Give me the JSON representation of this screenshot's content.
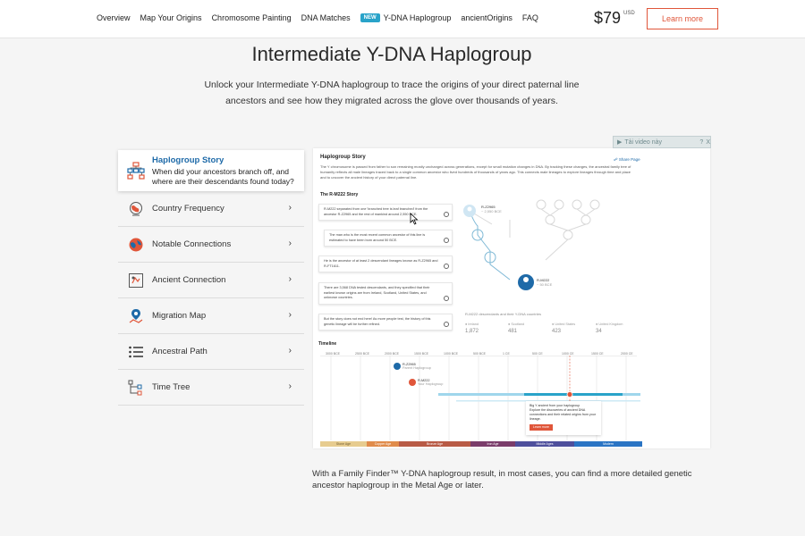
{
  "nav": {
    "links": [
      "Overview",
      "Map Your Origins",
      "Chromosome Painting",
      "DNA Matches"
    ],
    "new_badge": "NEW",
    "ydna_link": "Y-DNA Haplogroup",
    "more_links": [
      "ancientOrigins",
      "FAQ"
    ],
    "price": "$79",
    "currency": "USD",
    "learn_more": "Learn more"
  },
  "hero": {
    "title": "Intermediate Y-DNA Haplogroup",
    "subtitle": "Unlock your Intermediate Y-DNA haplogroup to trace the origins of your direct paternal line ancestors and see how they migrated across the glove over thousands of years."
  },
  "menu": {
    "active": {
      "title": "Haplogroup Story",
      "description": "When did your ancestors branch off, and where are their descendants found today?"
    },
    "items": [
      {
        "label": "Country Frequency",
        "icon": "globe-icon"
      },
      {
        "label": "Notable Connections",
        "icon": "world-map-icon"
      },
      {
        "label": "Ancient Connection",
        "icon": "artifact-icon"
      },
      {
        "label": "Migration Map",
        "icon": "map-pin-icon"
      },
      {
        "label": "Ancestral Path",
        "icon": "list-icon"
      },
      {
        "label": "Time Tree",
        "icon": "tree-icon"
      }
    ]
  },
  "video_overlay": {
    "label": "Tải video này",
    "help": "?",
    "close": "X"
  },
  "panel": {
    "title": "Haplogroup Story",
    "share": "Share Page",
    "description": "The Y chromosome is passed from father to son remaining mostly unchanged across generations, except for small mutation changes in DNA. By tracking these changes, the ancestral family tree of humanity reflects all male lineages traced back to a single common ancestor who lived hundreds of thousands of years ago. This connects male lineages to explore lineages through time and place and to uncover the ancient history of your direct paternal line.",
    "story_heading": "The R-M222 Story",
    "cards": [
      "R-M222 separated from one 'branched tree is leaf branched' from the ancestor R-Z2965 and the rest of mankind around 2,550 BCE.",
      "The man who is the most recent common ancestor of this line is estimated to have been born around 50 BCE.",
      "He is the ancestor of at least 2 descendant lineages known as R-Z2965 and R-FT1611.",
      "There are 3,568 DNA tested descendants, and they specified that their earliest known origins are from Ireland, Scotland, United States, and unknown countries.",
      "But the story does not end here! As more people test, the history of this genetic lineage will be further refined."
    ],
    "tree_top_label": "R-Z2965",
    "tree_top_sub": "~ 2,550 BCE",
    "tree_bottom_label": "R-M222",
    "tree_bottom_sub": "~ 50 BCE",
    "stats_heading": "R-M222 descendants and their Y-DNA countries",
    "stats": [
      {
        "label": "Ireland",
        "value": "1,872"
      },
      {
        "label": "Scotland",
        "value": "481"
      },
      {
        "label": "United States",
        "value": "423"
      },
      {
        "label": "United Kingdom",
        "value": "34"
      }
    ],
    "timeline_heading": "Timeline",
    "ticks": [
      "3000 BCE",
      "2500 BCE",
      "2000 BCE",
      "1500 BCE",
      "1000 BCE",
      "500 BCE",
      "1 CE",
      "500 CE",
      "1000 CE",
      "1500 CE",
      "2000 CE"
    ],
    "tl_marker_1_label": "R-Z2965",
    "tl_marker_1_sub": "Parent Haplogroup",
    "tl_marker_2_label": "R-M222",
    "tl_marker_2_sub": "Your Haplogroup",
    "callout_title": "Big Y ancient from your haplogroup",
    "callout_text": "Explore the discoveries of ancient DNA connections and their related origins from your lineage.",
    "callout_button": "Learn more",
    "bands": [
      "Stone Age",
      "Copper Age",
      "Bronze Age",
      "Iron Age",
      "Middle Ages",
      "Modern"
    ]
  },
  "footer_text": "With a Family Finder™ Y-DNA haplogroup result, in most cases, you can find a more detailed genetic ancestor haplogroup in the Metal Age or later.",
  "colors": {
    "accent_orange": "#e0563a",
    "link_blue": "#1e6aa8",
    "badge_teal": "#29a3c9"
  }
}
